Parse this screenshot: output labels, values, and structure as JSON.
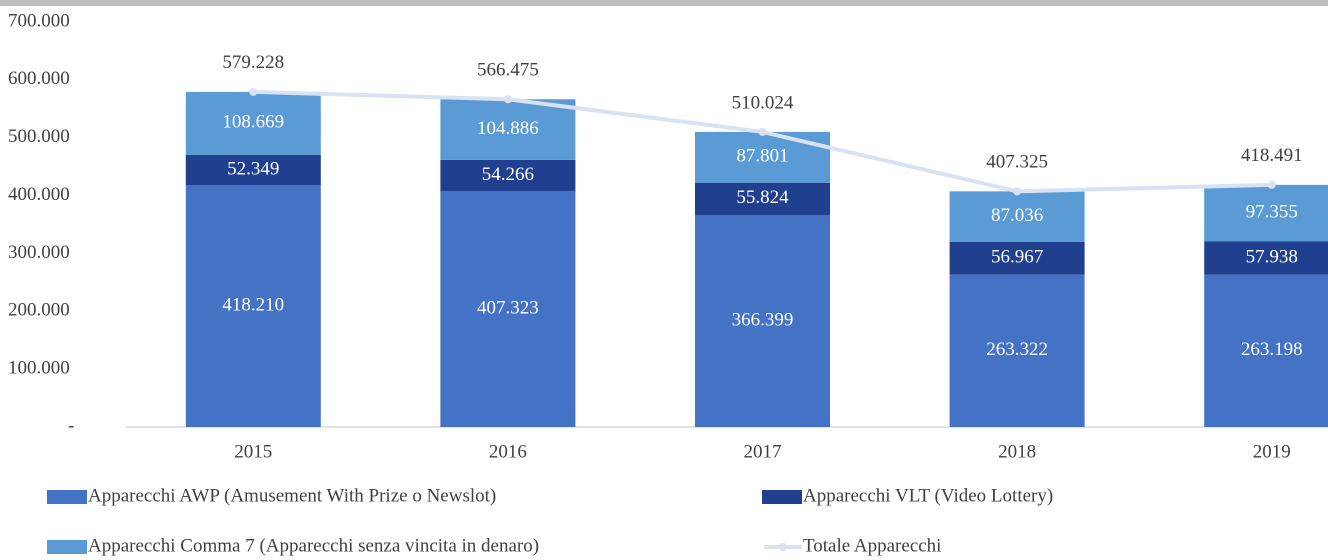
{
  "chart_data": {
    "type": "bar",
    "stacked": true,
    "categories": [
      "2015",
      "2016",
      "2017",
      "2018",
      "2019"
    ],
    "ylim": [
      0,
      700000
    ],
    "yticks": [
      {
        "value": 0,
        "label": "-"
      },
      {
        "value": 100000,
        "label": "100.000"
      },
      {
        "value": 200000,
        "label": "200.000"
      },
      {
        "value": 300000,
        "label": "300.000"
      },
      {
        "value": 400000,
        "label": "400.000"
      },
      {
        "value": 500000,
        "label": "500.000"
      },
      {
        "value": 600000,
        "label": "600.000"
      },
      {
        "value": 700000,
        "label": "700.000"
      }
    ],
    "grid": false,
    "legend": "bottom",
    "series": [
      {
        "name": "Apparecchi AWP (Amusement With Prize o Newslot)",
        "type": "bar",
        "color": "#4472c4",
        "values": [
          418210,
          407323,
          366399,
          263322,
          263198
        ],
        "value_labels": [
          "418.210",
          "407.323",
          "366.399",
          "263.322",
          "263.198"
        ]
      },
      {
        "name": "Apparecchi VLT (Video Lottery)",
        "type": "bar",
        "color": "#203f8f",
        "values": [
          52349,
          54266,
          55824,
          56967,
          57938
        ],
        "value_labels": [
          "52.349",
          "54.266",
          "55.824",
          "56.967",
          "57.938"
        ]
      },
      {
        "name": "Apparecchi Comma 7 (Apparecchi senza vincita in denaro)",
        "type": "bar",
        "color": "#5b9bd5",
        "values": [
          108669,
          104886,
          87801,
          87036,
          97355
        ],
        "value_labels": [
          "108.669",
          "104.886",
          "87.801",
          "87.036",
          "97.355"
        ]
      },
      {
        "name": "Totale Apparecchi",
        "type": "line",
        "color": "#d9e2f3",
        "values": [
          579228,
          566475,
          510024,
          407325,
          418491
        ],
        "value_labels": [
          "579.228",
          "566.475",
          "510.024",
          "407.325",
          "418.491"
        ]
      }
    ]
  }
}
